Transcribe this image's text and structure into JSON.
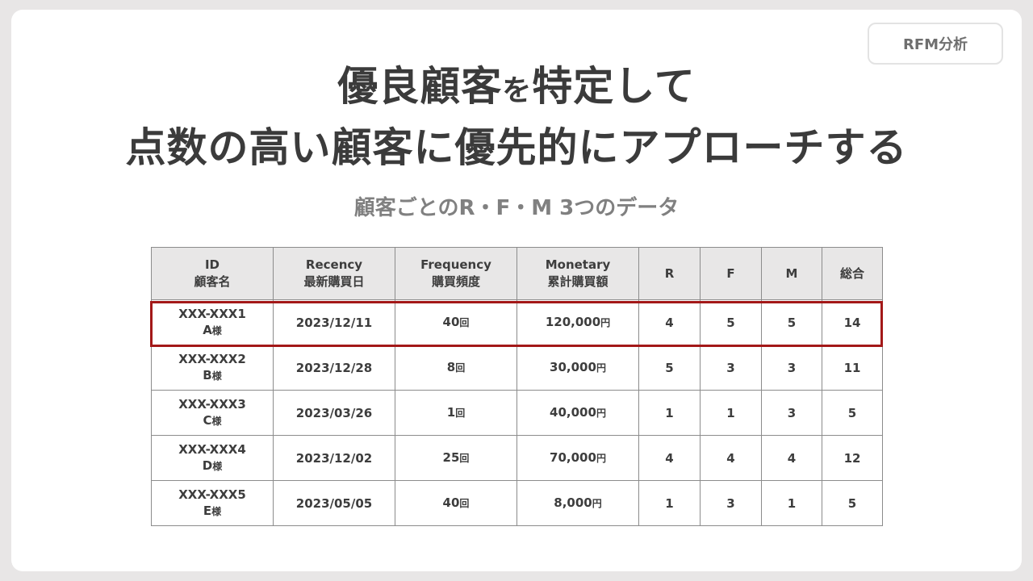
{
  "tag": "RFM分析",
  "title": {
    "line1_part1": "優良顧客",
    "line1_part2": "を",
    "line1_part3": "特定して",
    "line2": "点数の高い顧客に優先的にアプローチする"
  },
  "subtitle": "顧客ごとのR・F・M 3つのデータ",
  "table": {
    "headers": [
      {
        "line1": "ID",
        "line2": "顧客名"
      },
      {
        "line1": "Recency",
        "line2": "最新購買日"
      },
      {
        "line1": "Frequency",
        "line2": "購買頻度"
      },
      {
        "line1": "Monetary",
        "line2": "累計購買額"
      },
      {
        "line1": "R",
        "line2": ""
      },
      {
        "line1": "F",
        "line2": ""
      },
      {
        "line1": "M",
        "line2": ""
      },
      {
        "line1": "総合",
        "line2": ""
      }
    ],
    "rows": [
      {
        "id": "XXX-XXX1",
        "name": "A",
        "sama": "様",
        "recency": "2023/12/11",
        "frequency": "40",
        "freq_unit": "回",
        "monetary": "120,000",
        "mon_unit": "円",
        "r": "4",
        "f": "5",
        "m": "5",
        "total": "14"
      },
      {
        "id": "XXX-XXX2",
        "name": "B",
        "sama": "様",
        "recency": "2023/12/28",
        "frequency": "8",
        "freq_unit": "回",
        "monetary": "30,000",
        "mon_unit": "円",
        "r": "5",
        "f": "3",
        "m": "3",
        "total": "11"
      },
      {
        "id": "XXX-XXX3",
        "name": "C",
        "sama": "様",
        "recency": "2023/03/26",
        "frequency": "1",
        "freq_unit": "回",
        "monetary": "40,000",
        "mon_unit": "円",
        "r": "1",
        "f": "1",
        "m": "3",
        "total": "5"
      },
      {
        "id": "XXX-XXX4",
        "name": "D",
        "sama": "様",
        "recency": "2023/12/02",
        "frequency": "25",
        "freq_unit": "回",
        "monetary": "70,000",
        "mon_unit": "円",
        "r": "4",
        "f": "4",
        "m": "4",
        "total": "12"
      },
      {
        "id": "XXX-XXX5",
        "name": "E",
        "sama": "様",
        "recency": "2023/05/05",
        "frequency": "40",
        "freq_unit": "回",
        "monetary": "8,000",
        "mon_unit": "円",
        "r": "1",
        "f": "3",
        "m": "1",
        "total": "5"
      }
    ]
  },
  "colors": {
    "highlight_border": "#a31818",
    "header_bg": "#e8e7e7",
    "page_bg": "#e8e6e6"
  }
}
